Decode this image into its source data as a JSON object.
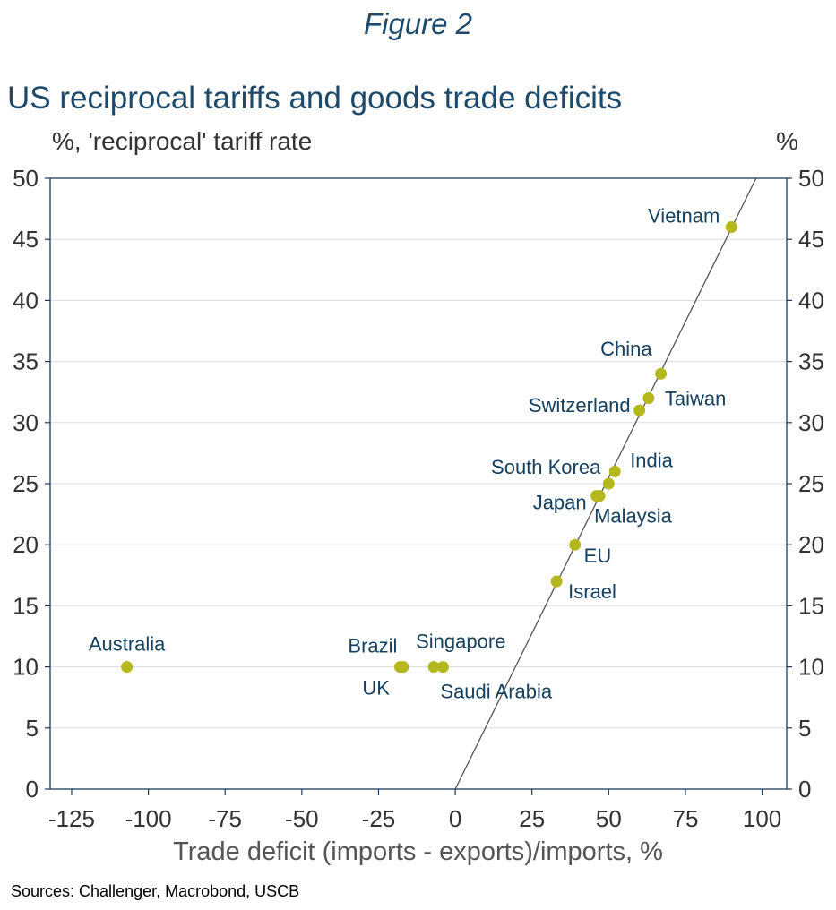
{
  "figure_label": "Figure 2",
  "source": "Sources: Challenger, Macrobond, USCB",
  "colors": {
    "title": "#1d4a6a",
    "point": "#b5b81c",
    "label": "#17405e",
    "frame": "#1d3c5a",
    "grid": "#dddddd",
    "trendline": "#555555"
  },
  "chart_data": {
    "type": "scatter",
    "title": "US reciprocal tariffs and goods trade deficits",
    "xlabel": "Trade deficit (imports - exports)/imports, %",
    "ylabel": "%, 'reciprocal' tariff rate",
    "ylabel_right": "%",
    "xlim": [
      -132,
      108
    ],
    "ylim": [
      0,
      50
    ],
    "xticks": [
      -125,
      -100,
      -75,
      -50,
      -25,
      0,
      25,
      50,
      75,
      100
    ],
    "yticks": [
      0,
      5,
      10,
      15,
      20,
      25,
      30,
      35,
      40,
      45,
      50
    ],
    "grid": "horizontal",
    "points": [
      {
        "label": "Vietnam",
        "x": 90,
        "y": 46
      },
      {
        "label": "China",
        "x": 67,
        "y": 34
      },
      {
        "label": "Taiwan",
        "x": 63,
        "y": 32
      },
      {
        "label": "Switzerland",
        "x": 60,
        "y": 31
      },
      {
        "label": "India",
        "x": 52,
        "y": 26
      },
      {
        "label": "South Korea",
        "x": 50,
        "y": 25
      },
      {
        "label": "Japan",
        "x": 46,
        "y": 24
      },
      {
        "label": "Malaysia",
        "x": 47,
        "y": 24
      },
      {
        "label": "EU",
        "x": 39,
        "y": 20
      },
      {
        "label": "Israel",
        "x": 33,
        "y": 17
      },
      {
        "label": "Australia",
        "x": -107,
        "y": 10
      },
      {
        "label": "Brazil",
        "x": -18,
        "y": 10
      },
      {
        "label": "UK",
        "x": -17,
        "y": 10
      },
      {
        "label": "Singapore",
        "x": -7,
        "y": 10
      },
      {
        "label": "Saudi Arabia",
        "x": -4,
        "y": 10
      }
    ],
    "trendline": {
      "x": [
        0,
        98
      ],
      "y": [
        0,
        50
      ]
    }
  }
}
